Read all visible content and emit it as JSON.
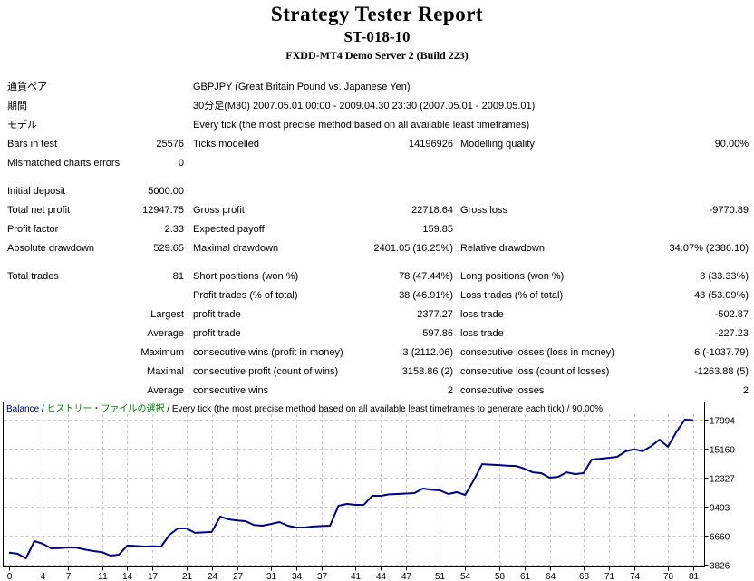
{
  "title": {
    "main": "Strategy Tester Report",
    "strategy": "ST-018-10",
    "server": "FXDD-MT4 Demo Server 2 (Build 223)"
  },
  "stats": {
    "rows": [
      {
        "cells": [
          "通貨ペア",
          "",
          "GBPJPY (Great Britain Pound vs. Japanese Yen)",
          "",
          "",
          ""
        ]
      },
      {
        "cells": [
          "期間",
          "",
          "30分足(M30) 2007.05.01 00:00 - 2009.04.30 23:30 (2007.05.01 - 2009.05.01)",
          "",
          "",
          ""
        ]
      },
      {
        "cells": [
          "モデル",
          "",
          "Every tick (the most precise method based on all available least timeframes)",
          "",
          "",
          ""
        ]
      },
      {
        "cells": [
          "Bars in test",
          "25576",
          "Ticks modelled",
          "14196926",
          "Modelling quality",
          "90.00%"
        ]
      },
      {
        "cells": [
          "Mismatched charts errors",
          "0",
          "",
          "",
          "",
          ""
        ]
      },
      {
        "spacer": true
      },
      {
        "cells": [
          "Initial deposit",
          "5000.00",
          "",
          "",
          "",
          ""
        ]
      },
      {
        "cells": [
          "Total net profit",
          "12947.75",
          "Gross profit",
          "22718.64",
          "Gross loss",
          "-9770.89"
        ]
      },
      {
        "cells": [
          "Profit factor",
          "2.33",
          "Expected payoff",
          "159.85",
          "",
          ""
        ]
      },
      {
        "cells": [
          "Absolute drawdown",
          "529.65",
          "Maximal drawdown",
          "2401.05 (16.25%)",
          "Relative drawdown",
          "34.07% (2386.10)"
        ]
      },
      {
        "spacer": true
      },
      {
        "cells": [
          "Total trades",
          "81",
          "Short positions (won %)",
          "78 (47.44%)",
          "Long positions (won %)",
          "3 (33.33%)"
        ]
      },
      {
        "cells": [
          "",
          "",
          "Profit trades (% of total)",
          "38 (46.91%)",
          "Loss trades (% of total)",
          "43 (53.09%)"
        ]
      },
      {
        "cells": [
          "",
          "Largest",
          "profit trade",
          "2377.27",
          "loss trade",
          "-502.87"
        ]
      },
      {
        "cells": [
          "",
          "Average",
          "profit trade",
          "597.86",
          "loss trade",
          "-227.23"
        ]
      },
      {
        "cells": [
          "",
          "Maximum",
          "consecutive wins (profit in money)",
          "3 (2112.06)",
          "consecutive losses (loss in money)",
          "6 (-1037.79)"
        ]
      },
      {
        "cells": [
          "",
          "Maximal",
          "consecutive profit (count of wins)",
          "3158.86 (2)",
          "consecutive loss (count of losses)",
          "-1263.88 (5)"
        ]
      },
      {
        "cells": [
          "",
          "Average",
          "consecutive wins",
          "2",
          "consecutive losses",
          "2"
        ]
      }
    ]
  },
  "legend": {
    "series": "Balance",
    "history": "ヒストリー・ファイルの選択",
    "method": "Every tick (the most precise method based on all available least timeframes to generate each tick)",
    "quality": "90.00%",
    "separator": " / "
  },
  "colors": {
    "balance_line": "#000080",
    "legend_series": "#000080",
    "legend_history": "#008000",
    "grid": "#c4c4c4",
    "frame": "#000000",
    "text": "#000000"
  },
  "chart_data": {
    "type": "line",
    "title": "Balance",
    "x_ticks": [
      0,
      4,
      7,
      11,
      14,
      17,
      21,
      24,
      27,
      31,
      34,
      37,
      41,
      44,
      47,
      51,
      54,
      58,
      61,
      64,
      68,
      71,
      74,
      78,
      81
    ],
    "y_ticks": [
      17994,
      15160,
      12327,
      9493,
      6660,
      3826
    ],
    "xlim": [
      0,
      81
    ],
    "ylim": [
      3826,
      17994
    ],
    "grid": true,
    "legend_position": "top-left",
    "series": [
      {
        "name": "Balance",
        "color": "#000080",
        "values": [
          5000,
          4900,
          4450,
          6130,
          5860,
          5420,
          5450,
          5510,
          5480,
          5300,
          5150,
          5050,
          4710,
          4800,
          5690,
          5650,
          5600,
          5620,
          5600,
          6750,
          7370,
          7370,
          6930,
          6980,
          7020,
          8520,
          8250,
          8150,
          8080,
          7700,
          7630,
          7800,
          7990,
          7630,
          7460,
          7460,
          7550,
          7600,
          7630,
          9580,
          9760,
          9670,
          9670,
          10560,
          10560,
          10700,
          10730,
          10780,
          10820,
          11260,
          11150,
          11090,
          10730,
          10910,
          10640,
          12060,
          13650,
          13600,
          13560,
          13500,
          13470,
          13210,
          12850,
          12770,
          12330,
          12410,
          12850,
          12680,
          12770,
          14100,
          14180,
          14270,
          14360,
          14900,
          15100,
          14900,
          15400,
          16050,
          15350,
          16800,
          17994,
          17948
        ]
      }
    ]
  }
}
